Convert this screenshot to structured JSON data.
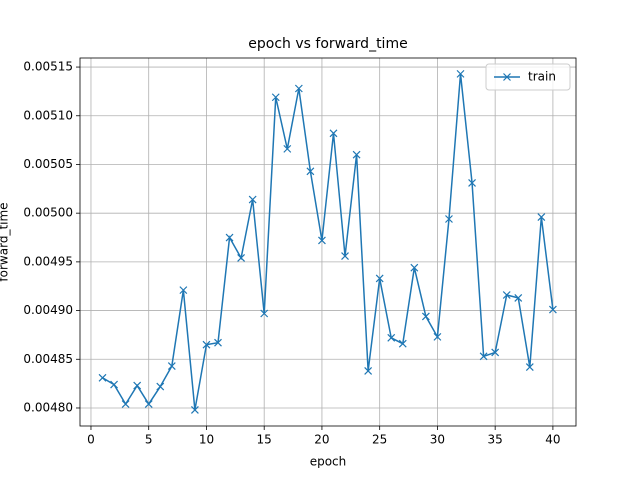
{
  "chart_data": {
    "type": "line",
    "title": "epoch vs forward_time",
    "xlabel": "epoch",
    "ylabel": "forward_time",
    "x": [
      1,
      2,
      3,
      4,
      5,
      6,
      7,
      8,
      9,
      10,
      11,
      12,
      13,
      14,
      15,
      16,
      17,
      18,
      19,
      20,
      21,
      22,
      23,
      24,
      25,
      26,
      27,
      28,
      29,
      30,
      31,
      32,
      33,
      34,
      35,
      36,
      37,
      38,
      39,
      40
    ],
    "series": [
      {
        "name": "train",
        "color": "#1f77b4",
        "values": [
          0.004831,
          0.004824,
          0.004804,
          0.004823,
          0.004804,
          0.004822,
          0.004843,
          0.004921,
          0.004798,
          0.004865,
          0.004867,
          0.004975,
          0.004954,
          0.005014,
          0.004897,
          0.005119,
          0.005066,
          0.005128,
          0.005043,
          0.004972,
          0.005082,
          0.004956,
          0.00506,
          0.004838,
          0.004933,
          0.004872,
          0.004866,
          0.004944,
          0.004894,
          0.004873,
          0.004994,
          0.005143,
          0.005031,
          0.004853,
          0.004857,
          0.004916,
          0.004913,
          0.004842,
          0.004996,
          0.004901
        ]
      }
    ],
    "xlim": [
      -0.95,
      42.0
    ],
    "ylim": [
      0.0047815,
      0.0051593
    ],
    "xticks": [
      0,
      5,
      10,
      15,
      20,
      25,
      30,
      35,
      40
    ],
    "yticks": [
      {
        "value": 0.0048,
        "label": "0.00480"
      },
      {
        "value": 0.00485,
        "label": "0.00485"
      },
      {
        "value": 0.0049,
        "label": "0.00490"
      },
      {
        "value": 0.00495,
        "label": "0.00495"
      },
      {
        "value": 0.005,
        "label": "0.00500"
      },
      {
        "value": 0.00505,
        "label": "0.00505"
      },
      {
        "value": 0.0051,
        "label": "0.00510"
      },
      {
        "value": 0.00515,
        "label": "0.00515"
      }
    ],
    "grid": true,
    "legend": "upper right"
  }
}
